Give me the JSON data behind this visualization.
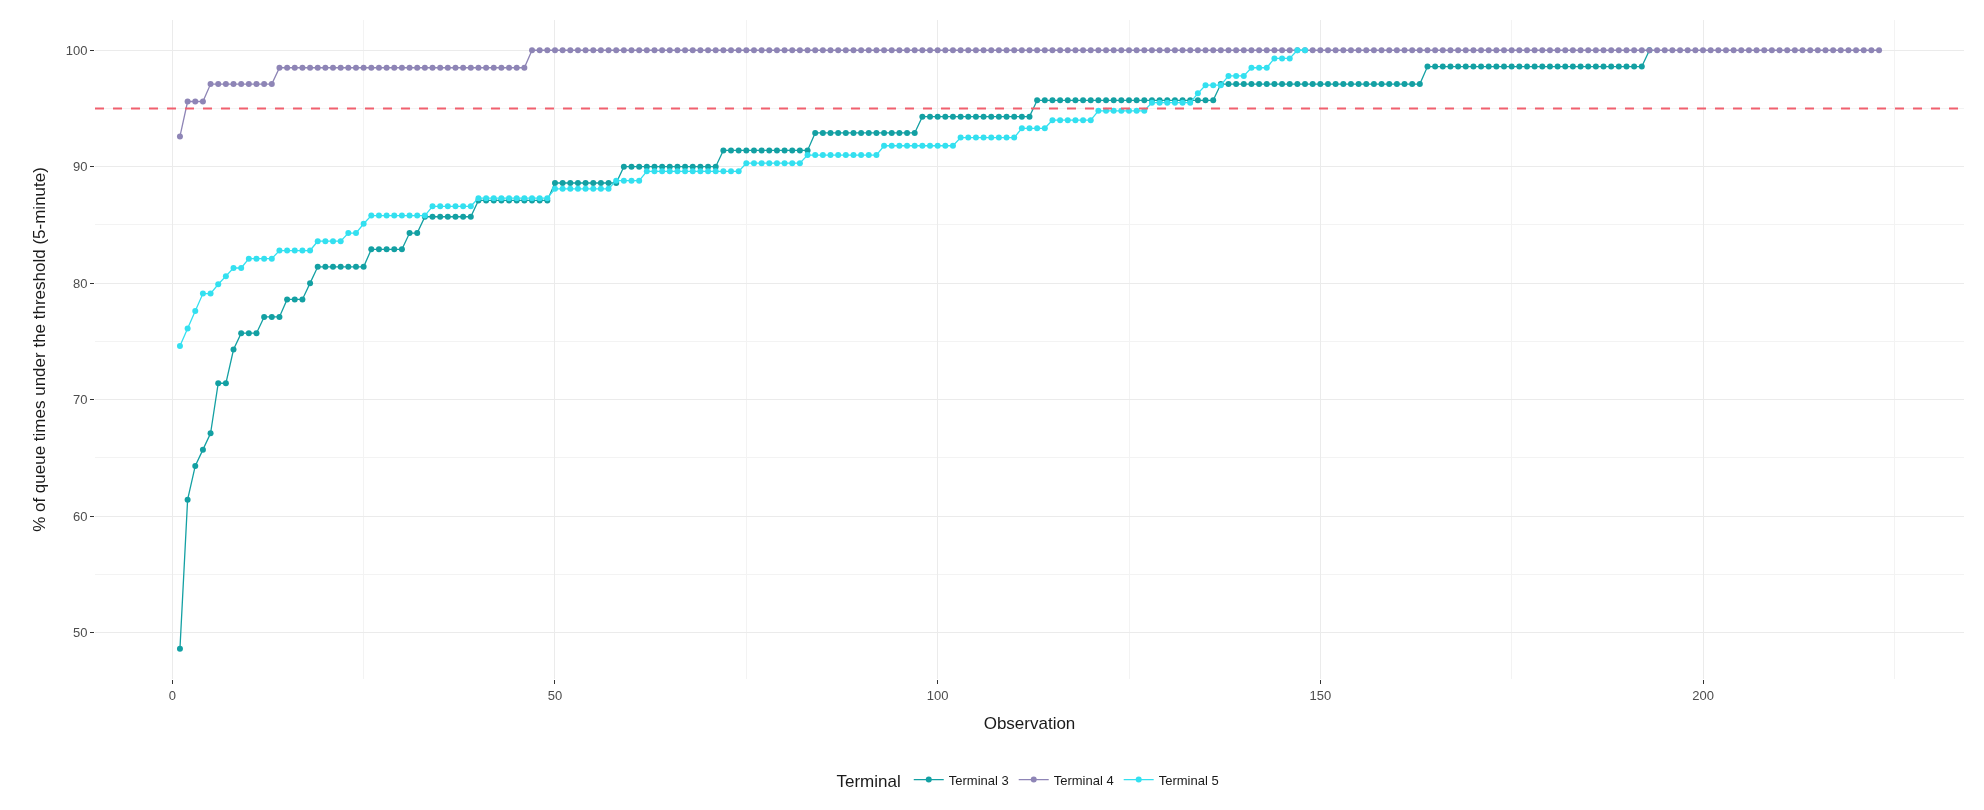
{
  "chart_data": {
    "type": "line",
    "xlabel": "Observation",
    "ylabel": "% of queue times under the threshold (5-minute)",
    "legend_title": "Terminal",
    "series": [
      {
        "name": "Terminal 3",
        "color": "#13a0a3",
        "x": [
          1,
          2,
          3,
          4,
          5,
          6,
          7,
          8,
          9,
          10,
          11,
          12,
          13,
          14,
          15,
          16,
          17,
          18,
          19,
          20,
          21,
          22,
          23,
          24,
          25,
          26,
          27,
          28,
          29,
          30,
          31,
          32,
          33,
          34,
          35,
          36,
          37,
          38,
          39,
          40,
          41,
          42,
          43,
          44,
          45,
          46,
          47,
          48,
          49,
          50,
          51,
          52,
          53,
          54,
          55,
          56,
          57,
          58,
          59,
          60,
          61,
          62,
          63,
          64,
          65,
          66,
          67,
          68,
          69,
          70,
          71,
          72,
          73,
          74,
          75,
          76,
          77,
          78,
          79,
          80,
          81,
          82,
          83,
          84,
          85,
          86,
          87,
          88,
          89,
          90,
          91,
          92,
          93,
          94,
          95,
          96,
          97,
          98,
          99,
          100,
          101,
          102,
          103,
          104,
          105,
          106,
          107,
          108,
          109,
          110,
          111,
          112,
          113,
          114,
          115,
          116,
          117,
          118,
          119,
          120,
          121,
          122,
          123,
          124,
          125,
          126,
          127,
          128,
          129,
          130,
          131,
          132,
          133,
          134,
          135,
          136,
          137,
          138,
          139,
          140,
          141,
          142,
          143,
          144,
          145,
          146,
          147,
          148,
          149,
          150,
          151,
          152,
          153,
          154,
          155,
          156,
          157,
          158,
          159,
          160,
          161,
          162,
          163,
          164,
          165,
          166,
          167,
          168,
          169,
          170,
          171,
          172,
          173,
          174,
          175,
          176,
          177,
          178,
          179,
          180,
          181,
          182,
          183,
          184,
          185,
          186,
          187,
          188,
          189,
          190,
          191,
          192,
          193
        ],
        "values": [
          48.6,
          61.4,
          64.3,
          65.7,
          67.1,
          71.4,
          71.4,
          74.3,
          75.7,
          75.7,
          75.7,
          77.1,
          77.1,
          77.1,
          78.6,
          78.6,
          78.6,
          80.0,
          81.4,
          81.4,
          81.4,
          81.4,
          81.4,
          81.4,
          81.4,
          82.9,
          82.9,
          82.9,
          82.9,
          82.9,
          84.3,
          84.3,
          85.7,
          85.7,
          85.7,
          85.7,
          85.7,
          85.7,
          85.7,
          87.1,
          87.1,
          87.1,
          87.1,
          87.1,
          87.1,
          87.1,
          87.1,
          87.1,
          87.1,
          88.6,
          88.6,
          88.6,
          88.6,
          88.6,
          88.6,
          88.6,
          88.6,
          88.6,
          90.0,
          90.0,
          90.0,
          90.0,
          90.0,
          90.0,
          90.0,
          90.0,
          90.0,
          90.0,
          90.0,
          90.0,
          90.0,
          91.4,
          91.4,
          91.4,
          91.4,
          91.4,
          91.4,
          91.4,
          91.4,
          91.4,
          91.4,
          91.4,
          91.4,
          92.9,
          92.9,
          92.9,
          92.9,
          92.9,
          92.9,
          92.9,
          92.9,
          92.9,
          92.9,
          92.9,
          92.9,
          92.9,
          92.9,
          94.3,
          94.3,
          94.3,
          94.3,
          94.3,
          94.3,
          94.3,
          94.3,
          94.3,
          94.3,
          94.3,
          94.3,
          94.3,
          94.3,
          94.3,
          95.7,
          95.7,
          95.7,
          95.7,
          95.7,
          95.7,
          95.7,
          95.7,
          95.7,
          95.7,
          95.7,
          95.7,
          95.7,
          95.7,
          95.7,
          95.7,
          95.7,
          95.7,
          95.7,
          95.7,
          95.7,
          95.7,
          95.7,
          95.7,
          97.1,
          97.1,
          97.1,
          97.1,
          97.1,
          97.1,
          97.1,
          97.1,
          97.1,
          97.1,
          97.1,
          97.1,
          97.1,
          97.1,
          97.1,
          97.1,
          97.1,
          97.1,
          97.1,
          97.1,
          97.1,
          97.1,
          97.1,
          97.1,
          97.1,
          97.1,
          97.1,
          98.6,
          98.6,
          98.6,
          98.6,
          98.6,
          98.6,
          98.6,
          98.6,
          98.6,
          98.6,
          98.6,
          98.6,
          98.6,
          98.6,
          98.6,
          98.6,
          98.6,
          98.6,
          98.6,
          98.6,
          98.6,
          98.6,
          98.6,
          98.6,
          98.6,
          98.6,
          98.6,
          98.6,
          98.6,
          100
        ]
      },
      {
        "name": "Terminal 4",
        "color": "#8e85b6",
        "x": [
          1,
          2,
          3,
          4,
          5,
          6,
          7,
          8,
          9,
          10,
          11,
          12,
          13,
          14,
          15,
          16,
          17,
          18,
          19,
          20,
          21,
          22,
          23,
          24,
          25,
          26,
          27,
          28,
          29,
          30,
          31,
          32,
          33,
          34,
          35,
          36,
          37,
          38,
          39,
          40,
          41,
          42,
          43,
          44,
          45,
          46,
          47,
          48,
          49,
          50,
          51,
          52,
          53,
          54,
          55,
          56,
          57,
          58,
          59,
          60,
          61,
          62,
          63,
          64,
          65,
          66,
          67,
          68,
          69,
          70,
          71,
          72,
          73,
          74,
          75,
          76,
          77,
          78,
          79,
          80,
          81,
          82,
          83,
          84,
          85,
          86,
          87,
          88,
          89,
          90,
          91,
          92,
          93,
          94,
          95,
          96,
          97,
          98,
          99,
          100,
          101,
          102,
          103,
          104,
          105,
          106,
          107,
          108,
          109,
          110,
          111,
          112,
          113,
          114,
          115,
          116,
          117,
          118,
          119,
          120,
          121,
          122,
          123,
          124,
          125,
          126,
          127,
          128,
          129,
          130,
          131,
          132,
          133,
          134,
          135,
          136,
          137,
          138,
          139,
          140,
          141,
          142,
          143,
          144,
          145,
          146,
          147,
          148,
          149,
          150,
          151,
          152,
          153,
          154,
          155,
          156,
          157,
          158,
          159,
          160,
          161,
          162,
          163,
          164,
          165,
          166,
          167,
          168,
          169,
          170,
          171,
          172,
          173,
          174,
          175,
          176,
          177,
          178,
          179,
          180,
          181,
          182,
          183,
          184,
          185,
          186,
          187,
          188,
          189,
          190,
          191,
          192,
          193,
          194,
          195,
          196,
          197,
          198,
          199,
          200,
          201,
          202,
          203,
          204,
          205,
          206,
          207,
          208,
          209,
          210,
          211,
          212,
          213,
          214,
          215,
          216,
          217,
          218,
          219,
          220,
          221,
          222,
          223
        ],
        "values": [
          92.6,
          95.6,
          95.6,
          95.6,
          97.1,
          97.1,
          97.1,
          97.1,
          97.1,
          97.1,
          97.1,
          97.1,
          97.1,
          98.5,
          98.5,
          98.5,
          98.5,
          98.5,
          98.5,
          98.5,
          98.5,
          98.5,
          98.5,
          98.5,
          98.5,
          98.5,
          98.5,
          98.5,
          98.5,
          98.5,
          98.5,
          98.5,
          98.5,
          98.5,
          98.5,
          98.5,
          98.5,
          98.5,
          98.5,
          98.5,
          98.5,
          98.5,
          98.5,
          98.5,
          98.5,
          98.5,
          100,
          100,
          100,
          100,
          100,
          100,
          100,
          100,
          100,
          100,
          100,
          100,
          100,
          100,
          100,
          100,
          100,
          100,
          100,
          100,
          100,
          100,
          100,
          100,
          100,
          100,
          100,
          100,
          100,
          100,
          100,
          100,
          100,
          100,
          100,
          100,
          100,
          100,
          100,
          100,
          100,
          100,
          100,
          100,
          100,
          100,
          100,
          100,
          100,
          100,
          100,
          100,
          100,
          100,
          100,
          100,
          100,
          100,
          100,
          100,
          100,
          100,
          100,
          100,
          100,
          100,
          100,
          100,
          100,
          100,
          100,
          100,
          100,
          100,
          100,
          100,
          100,
          100,
          100,
          100,
          100,
          100,
          100,
          100,
          100,
          100,
          100,
          100,
          100,
          100,
          100,
          100,
          100,
          100,
          100,
          100,
          100,
          100,
          100,
          100,
          100,
          100,
          100,
          100,
          100,
          100,
          100,
          100,
          100,
          100,
          100,
          100,
          100,
          100,
          100,
          100,
          100,
          100,
          100,
          100,
          100,
          100,
          100,
          100,
          100,
          100,
          100,
          100,
          100,
          100,
          100,
          100,
          100,
          100,
          100,
          100,
          100,
          100,
          100,
          100,
          100,
          100,
          100,
          100,
          100,
          100,
          100,
          100,
          100,
          100,
          100,
          100,
          100,
          100,
          100,
          100,
          100,
          100,
          100,
          100,
          100,
          100,
          100,
          100,
          100,
          100,
          100,
          100,
          100,
          100,
          100,
          100,
          100,
          100,
          100,
          100,
          100
        ]
      },
      {
        "name": "Terminal 5",
        "color": "#33e0f0",
        "x": [
          1,
          2,
          3,
          4,
          5,
          6,
          7,
          8,
          9,
          10,
          11,
          12,
          13,
          14,
          15,
          16,
          17,
          18,
          19,
          20,
          21,
          22,
          23,
          24,
          25,
          26,
          27,
          28,
          29,
          30,
          31,
          32,
          33,
          34,
          35,
          36,
          37,
          38,
          39,
          40,
          41,
          42,
          43,
          44,
          45,
          46,
          47,
          48,
          49,
          50,
          51,
          52,
          53,
          54,
          55,
          56,
          57,
          58,
          59,
          60,
          61,
          62,
          63,
          64,
          65,
          66,
          67,
          68,
          69,
          70,
          71,
          72,
          73,
          74,
          75,
          76,
          77,
          78,
          79,
          80,
          81,
          82,
          83,
          84,
          85,
          86,
          87,
          88,
          89,
          90,
          91,
          92,
          93,
          94,
          95,
          96,
          97,
          98,
          99,
          100,
          101,
          102,
          103,
          104,
          105,
          106,
          107,
          108,
          109,
          110,
          111,
          112,
          113,
          114,
          115,
          116,
          117,
          118,
          119,
          120,
          121,
          122,
          123,
          124,
          125,
          126,
          127,
          128,
          129,
          130,
          131,
          132,
          133,
          134,
          135,
          136,
          137,
          138,
          139,
          140,
          141,
          142,
          143,
          144,
          145,
          146,
          147,
          148
        ],
        "values": [
          74.6,
          76.1,
          77.6,
          79.1,
          79.1,
          79.9,
          80.6,
          81.3,
          81.3,
          82.1,
          82.1,
          82.1,
          82.1,
          82.8,
          82.8,
          82.8,
          82.8,
          82.8,
          83.6,
          83.6,
          83.6,
          83.6,
          84.3,
          84.3,
          85.1,
          85.8,
          85.8,
          85.8,
          85.8,
          85.8,
          85.8,
          85.8,
          85.8,
          86.6,
          86.6,
          86.6,
          86.6,
          86.6,
          86.6,
          87.3,
          87.3,
          87.3,
          87.3,
          87.3,
          87.3,
          87.3,
          87.3,
          87.3,
          87.3,
          88.1,
          88.1,
          88.1,
          88.1,
          88.1,
          88.1,
          88.1,
          88.1,
          88.8,
          88.8,
          88.8,
          88.8,
          89.6,
          89.6,
          89.6,
          89.6,
          89.6,
          89.6,
          89.6,
          89.6,
          89.6,
          89.6,
          89.6,
          89.6,
          89.6,
          90.3,
          90.3,
          90.3,
          90.3,
          90.3,
          90.3,
          90.3,
          90.3,
          91.0,
          91.0,
          91.0,
          91.0,
          91.0,
          91.0,
          91.0,
          91.0,
          91.0,
          91.0,
          91.8,
          91.8,
          91.8,
          91.8,
          91.8,
          91.8,
          91.8,
          91.8,
          91.8,
          91.8,
          92.5,
          92.5,
          92.5,
          92.5,
          92.5,
          92.5,
          92.5,
          92.5,
          93.3,
          93.3,
          93.3,
          93.3,
          94.0,
          94.0,
          94.0,
          94.0,
          94.0,
          94.0,
          94.8,
          94.8,
          94.8,
          94.8,
          94.8,
          94.8,
          94.8,
          95.5,
          95.5,
          95.5,
          95.5,
          95.5,
          95.5,
          96.3,
          97.0,
          97.0,
          97.0,
          97.8,
          97.8,
          97.8,
          98.5,
          98.5,
          98.5,
          99.3,
          99.3,
          99.3,
          100,
          100
        ]
      }
    ],
    "xlim": [
      -10.1,
      234.1
    ],
    "xticks": [
      0,
      50,
      100,
      150,
      200
    ],
    "ylim": [
      46.0,
      102.6
    ],
    "yticks": [
      50,
      60,
      70,
      80,
      90,
      100
    ],
    "ref_lines": [
      {
        "axis": "y",
        "value": 95,
        "color": "#f0606e",
        "line_style": "dashed"
      }
    ],
    "grid": true,
    "legend": "bottom",
    "marker": "circle",
    "line_style": "solid"
  }
}
